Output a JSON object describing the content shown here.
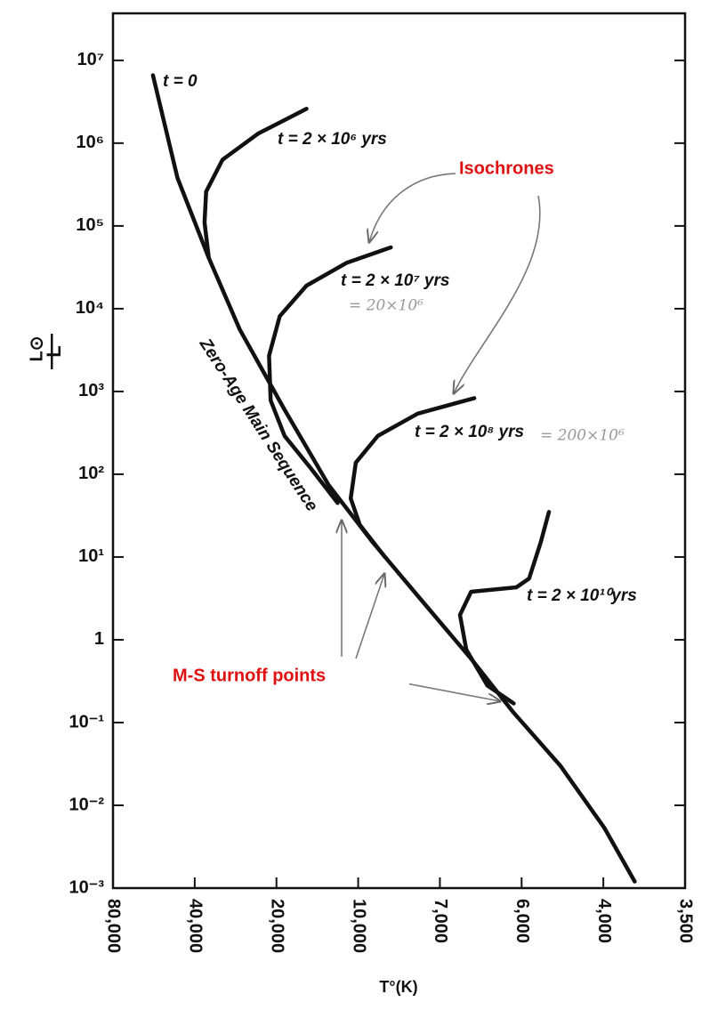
{
  "chart_data": {
    "type": "line",
    "xlabel": "T°(K)",
    "ylabel": [
      "L",
      "L⊙"
    ],
    "ylog": true,
    "ylim": [
      0.001,
      37000000
    ],
    "yticks": [
      {
        "value": 10000000,
        "label": "10⁷"
      },
      {
        "value": 1000000,
        "label": "10⁶"
      },
      {
        "value": 100000,
        "label": "10⁵"
      },
      {
        "value": 10000,
        "label": "10⁴"
      },
      {
        "value": 1000,
        "label": "10³"
      },
      {
        "value": 100,
        "label": "10²"
      },
      {
        "value": 10,
        "label": "10¹"
      },
      1,
      {
        "value": 0.1,
        "label": "10⁻¹"
      },
      {
        "value": 0.01,
        "label": "10⁻²"
      },
      {
        "value": 0.001,
        "label": "10⁻³"
      }
    ],
    "xlim": [
      80000,
      3500
    ],
    "xticks": [
      {
        "value": 80000,
        "label": "80,000"
      },
      {
        "value": 40000,
        "label": "40,000"
      },
      {
        "value": 20000,
        "label": "20,000"
      },
      {
        "value": 10000,
        "label": "10,000"
      },
      {
        "value": 7000,
        "label": "7,000"
      },
      {
        "value": 6000,
        "label": "6,000"
      },
      {
        "value": 4000,
        "label": "4,000"
      },
      {
        "value": 3500,
        "label": "3,500"
      }
    ],
    "series": [
      {
        "name": "t = 0",
        "color": "#111111",
        "x": [
          57000,
          46300,
          35500,
          27300,
          18660,
          12840,
          9380,
          7710,
          6600,
          6100,
          4950,
          3995,
          3800
        ],
        "values": [
          6600000,
          380000,
          41000,
          5600,
          600,
          74,
          15,
          3.4,
          0.59,
          0.135,
          0.03,
          0.0054,
          0.0012
        ]
      },
      {
        "name": "t = 2 × 10⁶ yrs",
        "color": "#111111",
        "x": [
          15500,
          23400,
          31600,
          36300,
          36800,
          35500
        ],
        "values": [
          2600000,
          1300000,
          630000,
          260000,
          110000,
          41000
        ]
      },
      {
        "name": "t = 2 × 10⁷ yrs",
        "color": "#111111",
        "x": [
          8670,
          11000,
          15500,
          19450,
          21300,
          21000,
          18660,
          15000,
          11900
        ],
        "values": [
          55000,
          36000,
          19000,
          8100,
          2700,
          780,
          290,
          120,
          45
        ]
      },
      {
        "name": "t = 2 × 10⁸ yrs",
        "color": "#111111",
        "x": [
          6560,
          7710,
          9180,
          10200,
          10650,
          9930,
          8900
        ],
        "values": [
          830,
          540,
          290,
          138,
          51,
          24.5,
          10
        ]
      },
      {
        "name": "t = 2 × 10¹⁰yrs",
        "color": "#111111",
        "x": [
          5240,
          5460,
          5780,
          6060,
          6600,
          6740,
          6660,
          6400,
          6090
        ],
        "values": [
          35,
          15,
          5.5,
          4.3,
          3.8,
          2.0,
          0.76,
          0.28,
          0.17
        ]
      }
    ],
    "annotations": [
      "Zero-Age Main Sequence",
      "Isochrones",
      "M-S turnoff points",
      "= 20×10⁶",
      "= 200×10⁶"
    ]
  }
}
